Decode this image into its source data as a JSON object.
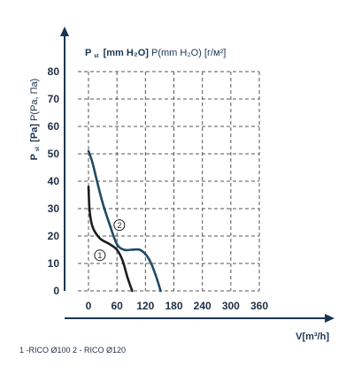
{
  "colors": {
    "axis": "#1a3553",
    "grid": "#555555",
    "series1": "#1c1c1c",
    "series2": "#1f4a66"
  },
  "chart_data": {
    "type": "line",
    "ylabel_primary": "[mm H₂O]",
    "ylabel_sub": "st",
    "ylabel_P": "P",
    "ylabel_rest": "P(mm H₂O) [г/м²]",
    "yaxis_title_P": "P",
    "yaxis_title_sub": "st",
    "yaxis_title_bold": "[Pa]",
    "yaxis_title_rest": "P(Pa, Па)",
    "xlabel": "V[m³/h]",
    "xticks": [
      "0",
      "60",
      "120",
      "180",
      "240",
      "300",
      "360"
    ],
    "yticks": [
      "0",
      "10",
      "20",
      "30",
      "40",
      "50",
      "60",
      "70",
      "80"
    ],
    "xlim": [
      0,
      360
    ],
    "ylim": [
      0,
      80
    ],
    "grid": true,
    "series": [
      {
        "name": "1",
        "x": [
          0,
          2,
          6,
          12,
          25,
          45,
          60,
          72,
          82,
          92
        ],
        "y": [
          38,
          30,
          25,
          22,
          19,
          17,
          15,
          11,
          5,
          0
        ]
      },
      {
        "name": "2",
        "x": [
          0,
          8,
          18,
          30,
          45,
          60,
          75,
          90,
          108,
          122,
          132,
          143,
          152
        ],
        "y": [
          51,
          47,
          40,
          32,
          24,
          17,
          15,
          15,
          15,
          13,
          10,
          5,
          0
        ]
      }
    ],
    "series_labels": [
      "1",
      "2"
    ],
    "legend_note": "1 -RICO Ø100   2 - RICO Ø120"
  }
}
